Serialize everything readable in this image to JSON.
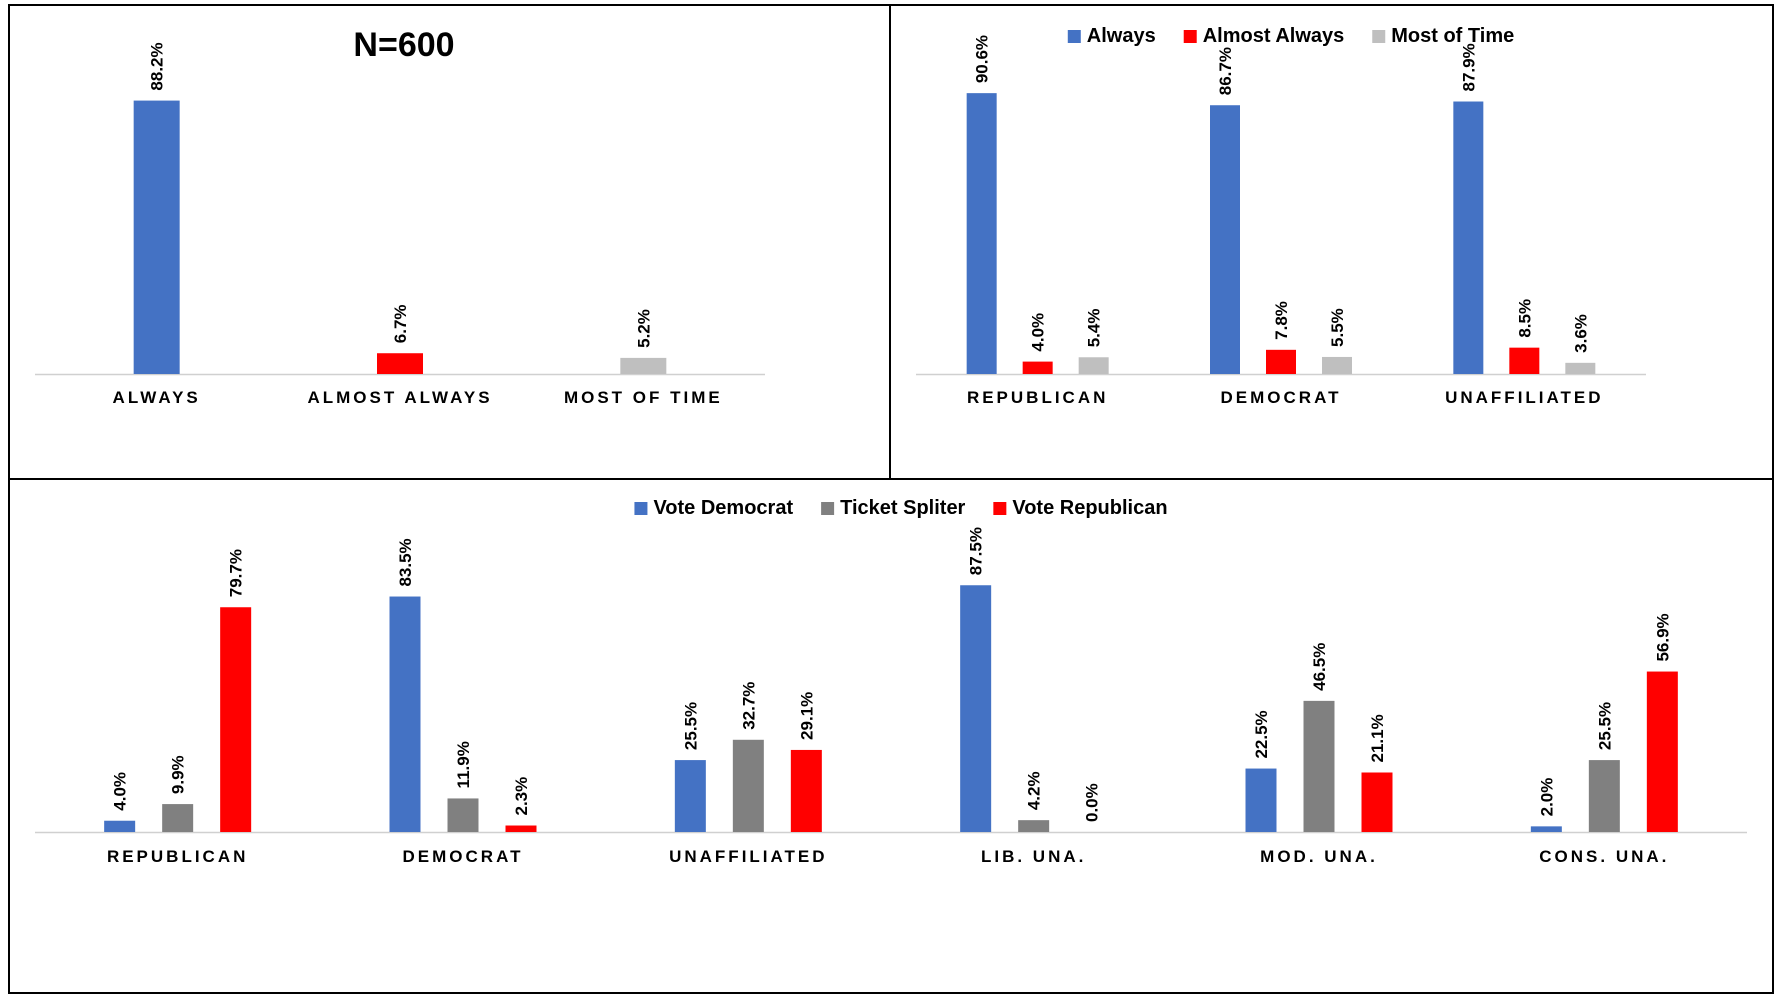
{
  "chart_data": [
    {
      "type": "bar",
      "title": "N=600",
      "xlabel": "",
      "ylabel": "",
      "ylim": [
        0,
        100
      ],
      "grid": false,
      "legend": "none",
      "categories": [
        "ALWAYS",
        "ALMOST ALWAYS",
        "MOST OF TIME"
      ],
      "values": [
        88.2,
        6.7,
        5.2
      ],
      "value_labels": [
        "88.2%",
        "6.7%",
        "5.2%"
      ],
      "colors": [
        "#4472C4",
        "#FF0000",
        "#BFBFBF"
      ]
    },
    {
      "type": "bar",
      "title": "",
      "xlabel": "",
      "ylabel": "",
      "ylim": [
        0,
        100
      ],
      "grid": false,
      "legend": "top",
      "categories": [
        "REPUBLICAN",
        "DEMOCRAT",
        "UNAFFILIATED"
      ],
      "series": [
        {
          "name": "Always",
          "color": "#4472C4",
          "values": [
            90.6,
            86.7,
            87.9
          ],
          "labels": [
            "90.6%",
            "86.7%",
            "87.9%"
          ]
        },
        {
          "name": "Almost Always",
          "color": "#FF0000",
          "values": [
            4.0,
            7.8,
            8.5
          ],
          "labels": [
            "4.0%",
            "7.8%",
            "8.5%"
          ]
        },
        {
          "name": "Most of Time",
          "color": "#BFBFBF",
          "values": [
            5.4,
            5.5,
            3.6
          ],
          "labels": [
            "5.4%",
            "5.5%",
            "3.6%"
          ]
        }
      ]
    },
    {
      "type": "bar",
      "title": "",
      "xlabel": "",
      "ylabel": "",
      "ylim": [
        0,
        100
      ],
      "grid": false,
      "legend": "top",
      "categories": [
        "REPUBLICAN",
        "DEMOCRAT",
        "UNAFFILIATED",
        "LIB. UNA.",
        "MOD. UNA.",
        "CONS. UNA."
      ],
      "series": [
        {
          "name": "Vote Democrat",
          "color": "#4472C4",
          "values": [
            4.0,
            83.5,
            25.5,
            87.5,
            22.5,
            2.0
          ],
          "labels": [
            "4.0%",
            "83.5%",
            "25.5%",
            "87.5%",
            "22.5%",
            "2.0%"
          ]
        },
        {
          "name": "Ticket Spliter",
          "color": "#808080",
          "values": [
            9.9,
            11.9,
            32.7,
            4.2,
            46.5,
            25.5
          ],
          "labels": [
            "9.9%",
            "11.9%",
            "32.7%",
            "4.2%",
            "46.5%",
            "25.5%"
          ]
        },
        {
          "name": "Vote Republican",
          "color": "#FF0000",
          "values": [
            79.7,
            2.3,
            29.1,
            0.0,
            21.1,
            56.9
          ],
          "labels": [
            "79.7%",
            "2.3%",
            "29.1%",
            "0.0%",
            "21.1%",
            "56.9%"
          ]
        }
      ]
    }
  ]
}
